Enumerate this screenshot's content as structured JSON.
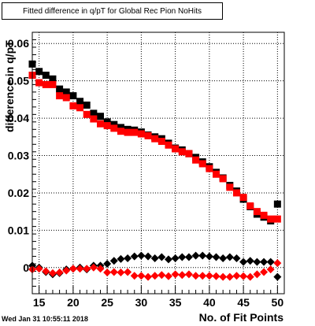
{
  "header": {
    "title": "Fitted difference in q/pT for Global Rec Pion NoHits",
    "timestamp": "Wed Jan 31 10:55:11 2018"
  },
  "chart_data": {
    "type": "scatter",
    "title": "Fitted difference in q/pT for Global Rec Pion NoHits",
    "xlabel": "No. of Fit Points",
    "ylabel": "difference in q/pT",
    "xlim": [
      14,
      51
    ],
    "ylim": [
      -0.007,
      0.063
    ],
    "xticks": [
      15,
      20,
      25,
      30,
      35,
      40,
      45,
      50
    ],
    "yticks": [
      0,
      0.01,
      0.02,
      0.03,
      0.04,
      0.05,
      0.06
    ],
    "ytick_labels": [
      "0",
      "0.01",
      "0.02",
      "0.03",
      "0.04",
      "0.05",
      "0.06"
    ],
    "grid": true,
    "series": [
      {
        "marker": "square",
        "color": "#000000",
        "x": [
          14,
          15,
          16,
          17,
          18,
          19,
          20,
          21,
          22,
          23,
          24,
          25,
          26,
          27,
          28,
          29,
          30,
          31,
          32,
          33,
          34,
          35,
          36,
          37,
          38,
          39,
          40,
          41,
          42,
          43,
          44,
          45,
          46,
          47,
          48,
          49,
          50
        ],
        "y": [
          0.0545,
          0.0525,
          0.0515,
          0.0505,
          0.0478,
          0.047,
          0.046,
          0.0445,
          0.0435,
          0.0413,
          0.0405,
          0.039,
          0.0383,
          0.0375,
          0.037,
          0.0368,
          0.0363,
          0.0355,
          0.035,
          0.0345,
          0.0333,
          0.032,
          0.0315,
          0.0305,
          0.0295,
          0.0283,
          0.027,
          0.0255,
          0.024,
          0.022,
          0.0205,
          0.0183,
          0.0163,
          0.0143,
          0.0135,
          0.0125,
          0.017
        ]
      },
      {
        "marker": "square",
        "color": "#ff0000",
        "x": [
          14,
          15,
          16,
          17,
          18,
          19,
          20,
          21,
          22,
          23,
          24,
          25,
          26,
          27,
          28,
          29,
          30,
          31,
          32,
          33,
          34,
          35,
          36,
          37,
          38,
          39,
          40,
          41,
          42,
          43,
          44,
          45,
          46,
          47,
          48,
          49,
          50
        ],
        "y": [
          0.0515,
          0.0495,
          0.049,
          0.049,
          0.046,
          0.0455,
          0.0433,
          0.0428,
          0.041,
          0.0398,
          0.0385,
          0.038,
          0.0373,
          0.0365,
          0.0362,
          0.0362,
          0.0358,
          0.0353,
          0.0345,
          0.0338,
          0.0328,
          0.0318,
          0.031,
          0.0305,
          0.0288,
          0.0278,
          0.0265,
          0.025,
          0.0238,
          0.0215,
          0.02,
          0.0188,
          0.0165,
          0.015,
          0.014,
          0.013,
          0.013
        ]
      },
      {
        "marker": "diamond",
        "color": "#000000",
        "x": [
          14,
          15,
          16,
          17,
          18,
          19,
          20,
          21,
          22,
          23,
          24,
          25,
          26,
          27,
          28,
          29,
          30,
          31,
          32,
          33,
          34,
          35,
          36,
          37,
          38,
          39,
          40,
          41,
          42,
          43,
          44,
          45,
          46,
          47,
          48,
          49,
          50
        ],
        "y": [
          0.0005,
          0.0,
          -0.0012,
          -0.0018,
          -0.0015,
          -0.0005,
          -0.0003,
          0.0,
          -0.0005,
          0.0005,
          0.0005,
          0.001,
          0.0018,
          0.0023,
          0.0025,
          0.003,
          0.0032,
          0.003,
          0.0025,
          0.0028,
          0.0022,
          0.0025,
          0.0028,
          0.0028,
          0.0032,
          0.0032,
          0.003,
          0.0028,
          0.0025,
          0.0028,
          0.0025,
          0.0015,
          0.0018,
          0.0015,
          0.0015,
          0.0015,
          -0.0025
        ]
      },
      {
        "marker": "diamond",
        "color": "#ff0000",
        "x": [
          14,
          15,
          16,
          17,
          18,
          19,
          20,
          21,
          22,
          23,
          24,
          25,
          26,
          27,
          28,
          29,
          30,
          31,
          32,
          33,
          34,
          35,
          36,
          37,
          38,
          39,
          40,
          41,
          42,
          43,
          44,
          45,
          46,
          47,
          48,
          49,
          50
        ],
        "y": [
          -0.0005,
          -0.0003,
          -0.001,
          -0.0015,
          -0.0013,
          -0.0008,
          -0.0003,
          -0.0003,
          -0.0003,
          0.0,
          -0.0003,
          -0.0013,
          -0.0012,
          -0.0013,
          -0.0012,
          -0.0022,
          -0.0022,
          -0.0025,
          -0.0022,
          -0.002,
          -0.0023,
          -0.0018,
          -0.002,
          -0.0018,
          -0.0022,
          -0.0022,
          -0.0022,
          -0.0023,
          -0.0025,
          -0.0025,
          -0.0022,
          -0.0023,
          -0.0025,
          -0.0018,
          -0.0012,
          -0.0005,
          0.0012
        ]
      }
    ]
  }
}
